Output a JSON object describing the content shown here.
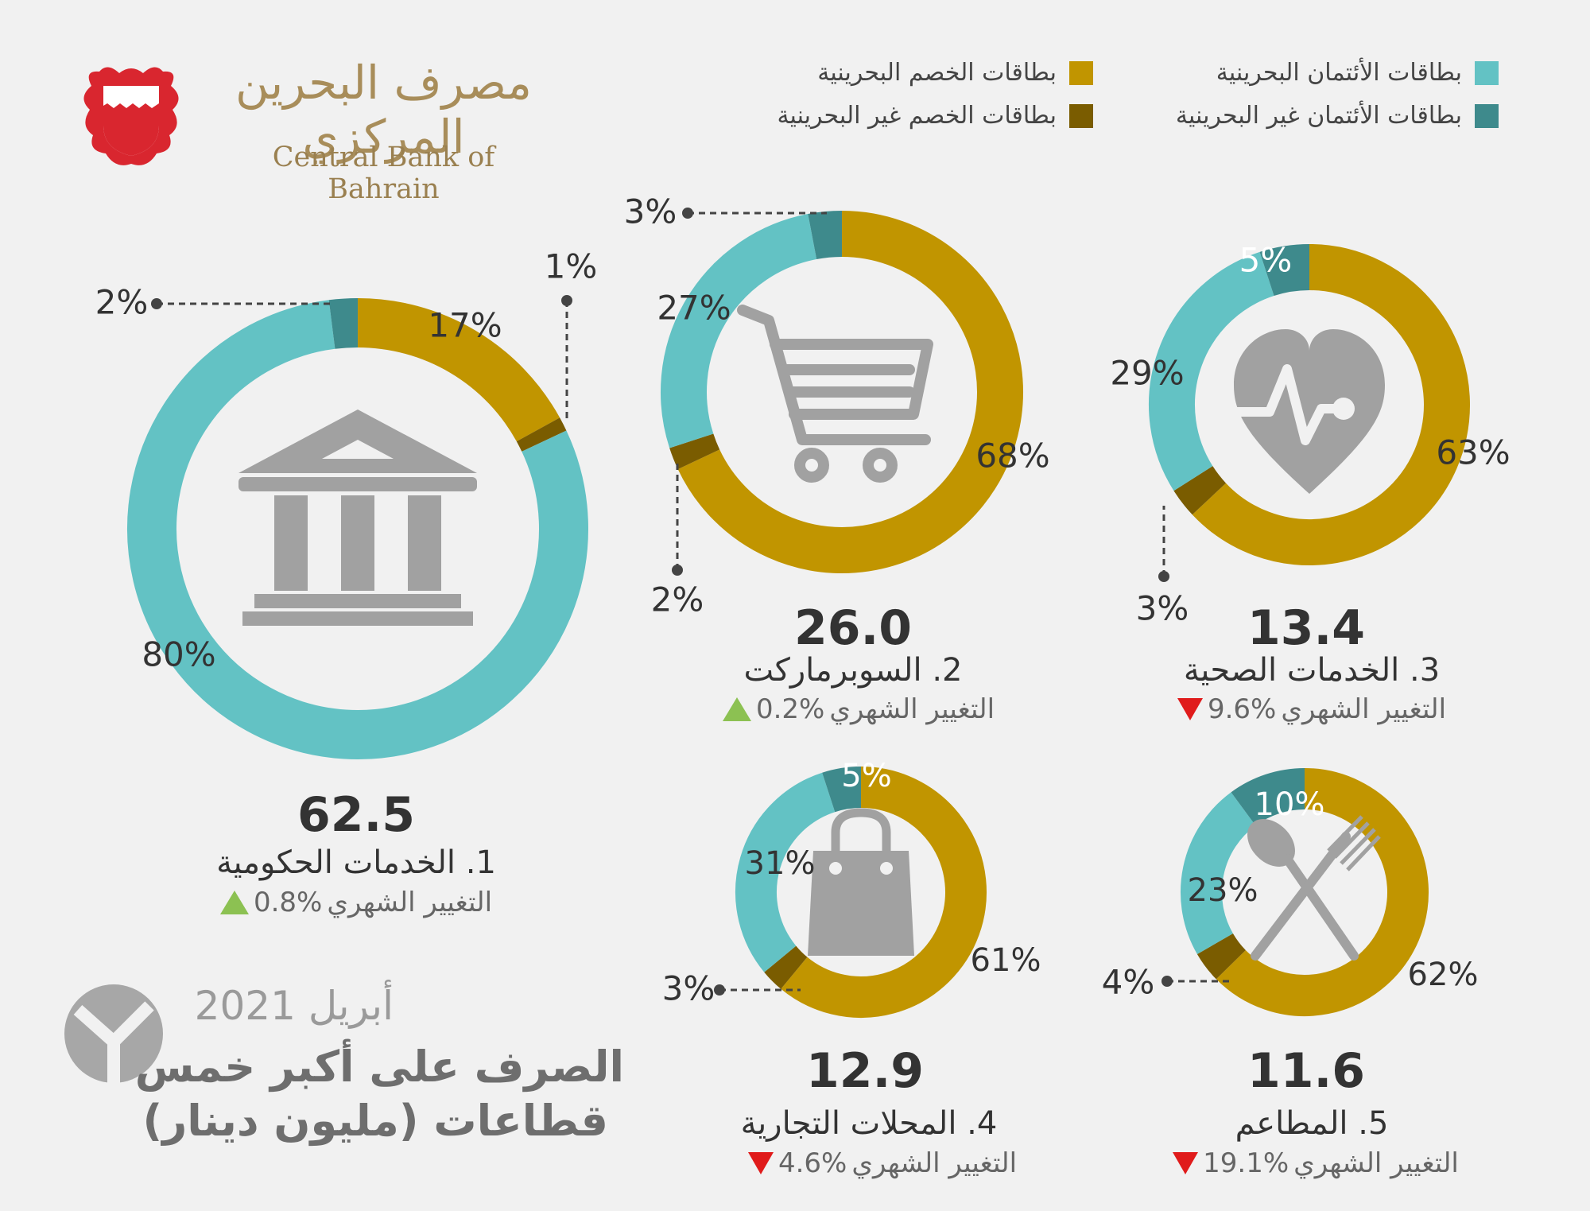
{
  "header": {
    "bank_name_ar": "مصرف البحرين المركزي",
    "bank_name_en": "Central Bank of Bahrain"
  },
  "legend": {
    "items": [
      {
        "label": "بطاقات الخصم البحرينية",
        "color": "#c19500"
      },
      {
        "label": "بطاقات الأئتمان البحرينية",
        "color": "#63c2c4"
      },
      {
        "label": "بطاقات الخصم غير البحرينية",
        "color": "#7a5c00"
      },
      {
        "label": "بطاقات الأئتمان غير البحرينية",
        "color": "#3e8a8c"
      }
    ]
  },
  "title": {
    "date": "أبريل 2021",
    "line1": "الصرف على أكبر خمس",
    "line2": "قطاعات (مليون دينار)"
  },
  "change_label": "التغيير الشهري",
  "chart_data": [
    {
      "type": "pie",
      "rank": "1.",
      "name": "الخدمات الحكومية",
      "total": "62.5",
      "monthly_change": "0.8%",
      "change_direction": "up",
      "icon": "government-building-icon",
      "categories": [
        "بطاقات الخصم البحرينية",
        "بطاقات الخصم غير البحرينية",
        "بطاقات الأئتمان البحرينية",
        "بطاقات الأئتمان غير البحرينية"
      ],
      "values": [
        17,
        1,
        80,
        2
      ],
      "labels": [
        "17%",
        "1%",
        "80%",
        "2%"
      ]
    },
    {
      "type": "pie",
      "rank": "2.",
      "name": "السوبرماركت",
      "total": "26.0",
      "monthly_change": "0.2%",
      "change_direction": "up",
      "icon": "shopping-cart-icon",
      "categories": [
        "بطاقات الخصم البحرينية",
        "بطاقات الخصم غير البحرينية",
        "بطاقات الأئتمان البحرينية",
        "بطاقات الأئتمان غير البحرينية"
      ],
      "values": [
        68,
        2,
        27,
        3
      ],
      "labels": [
        "68%",
        "2%",
        "27%",
        "3%"
      ]
    },
    {
      "type": "pie",
      "rank": "3.",
      "name": "الخدمات الصحية",
      "total": "13.4",
      "monthly_change": "9.6%",
      "change_direction": "down",
      "icon": "heart-pulse-icon",
      "categories": [
        "بطاقات الخصم البحرينية",
        "بطاقات الخصم غير البحرينية",
        "بطاقات الأئتمان البحرينية",
        "بطاقات الأئتمان غير البحرينية"
      ],
      "values": [
        63,
        3,
        29,
        5
      ],
      "labels": [
        "63%",
        "3%",
        "29%",
        "5%"
      ]
    },
    {
      "type": "pie",
      "rank": "4.",
      "name": "المحلات التجارية",
      "total": "12.9",
      "monthly_change": "4.6%",
      "change_direction": "down",
      "icon": "shopping-bag-icon",
      "categories": [
        "بطاقات الخصم البحرينية",
        "بطاقات الخصم غير البحرينية",
        "بطاقات الأئتمان البحرينية",
        "بطاقات الأئتمان غير البحرينية"
      ],
      "values": [
        61,
        3,
        31,
        5
      ],
      "labels": [
        "61%",
        "3%",
        "31%",
        "5%"
      ]
    },
    {
      "type": "pie",
      "rank": "5.",
      "name": "المطاعم",
      "total": "11.6",
      "monthly_change": "19.1%",
      "change_direction": "down",
      "icon": "spoon-fork-icon",
      "categories": [
        "بطاقات الخصم البحرينية",
        "بطاقات الخصم غير البحرينية",
        "بطاقات الأئتمان البحرينية",
        "بطاقات الأئتمان غير البحرينية"
      ],
      "values": [
        62,
        4,
        23,
        10
      ],
      "labels": [
        "62%",
        "4%",
        "23%",
        "10%"
      ]
    }
  ]
}
